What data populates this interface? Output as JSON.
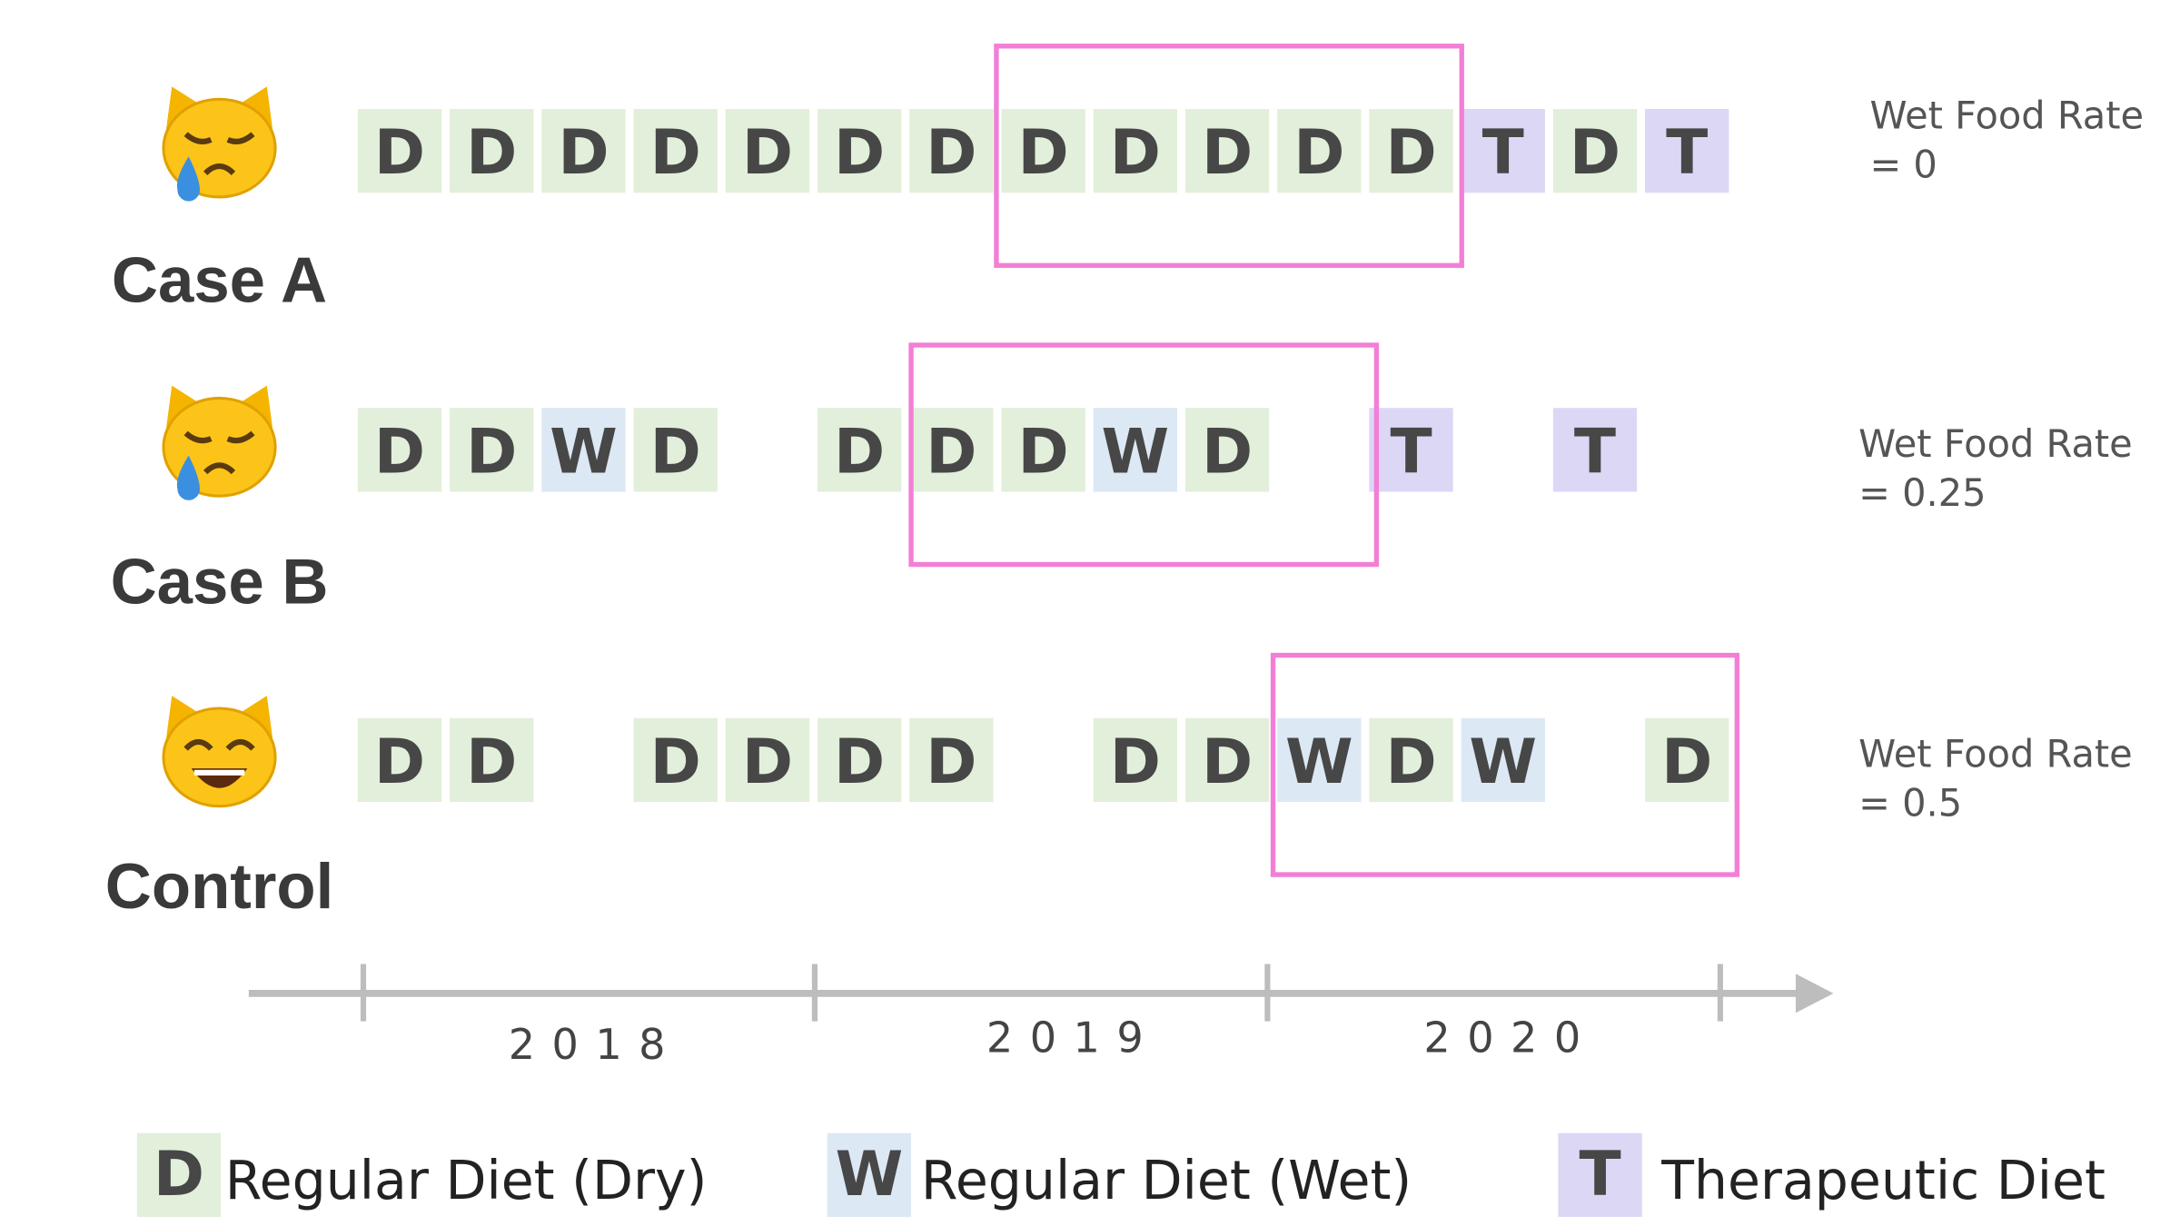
{
  "rows": [
    {
      "label": "Case A",
      "rate": [
        "Wet Food Rate",
        "= 0"
      ],
      "cells": [
        "D",
        "D",
        "D",
        "D",
        "D",
        "D",
        "D",
        "D",
        "D",
        "D",
        "D",
        "D",
        "T",
        "D",
        "T"
      ]
    },
    {
      "label": "Case B",
      "rate": [
        "Wet Food Rate",
        "= 0.25"
      ],
      "cells": [
        "D",
        "D",
        "W",
        "D",
        null,
        "D",
        "D",
        "D",
        "W",
        "D",
        null,
        "T",
        null,
        "T",
        null
      ]
    },
    {
      "label": "Control",
      "rate": [
        "Wet Food Rate",
        "= 0.5"
      ],
      "cells": [
        "D",
        "D",
        null,
        "D",
        "D",
        "D",
        "D",
        null,
        "D",
        "D",
        "W",
        "D",
        "W",
        null,
        "D"
      ]
    }
  ],
  "axis": {
    "years": [
      "2018",
      "2019",
      "2020"
    ]
  },
  "legend": [
    {
      "key": "D",
      "label": "Regular Diet (Dry)",
      "color": "#e2efda"
    },
    {
      "key": "W",
      "label": "Regular Diet (Wet)",
      "color": "#dde8f5"
    },
    {
      "key": "T",
      "label": "Therapeutic Diet",
      "color": "#ddd7f6"
    }
  ]
}
